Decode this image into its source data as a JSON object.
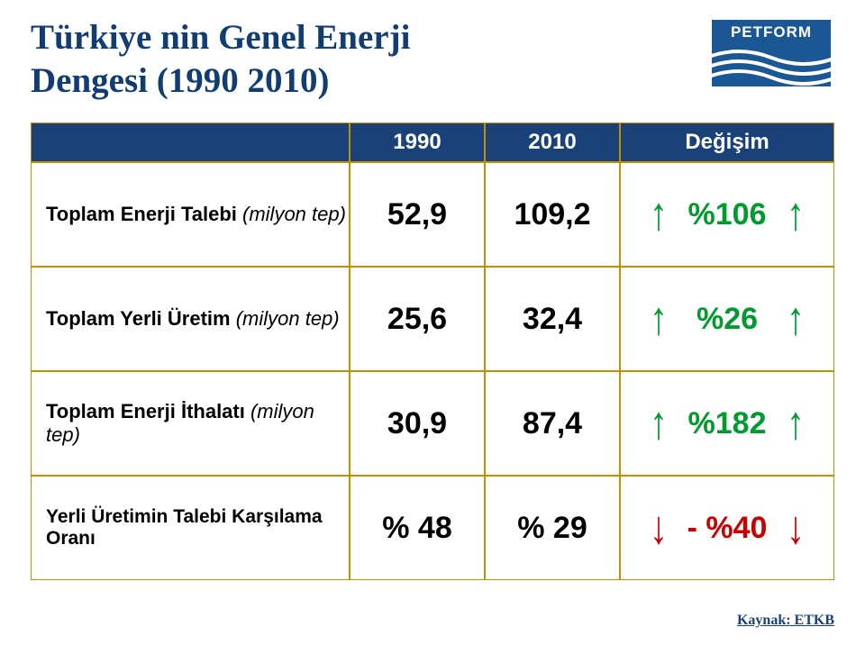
{
  "title": {
    "line1": "Türkiye nin Genel Enerji",
    "line2": "Dengesi (1990   2010)",
    "color": "#113d73",
    "fontsize": 39
  },
  "logo": {
    "text": "PETFORM",
    "top_bg": "#1a5794",
    "wave_bg": "#1a5794",
    "wave_color": "#ffffff"
  },
  "table": {
    "border_color": "#c68f00",
    "header": {
      "bg": "#1a4279",
      "fg": "#ffffff",
      "fontsize": 24,
      "cells": [
        "",
        "1990",
        "2010",
        "Değişim"
      ]
    },
    "rows": [
      {
        "label_main": "Toplam Enerji Talebi ",
        "label_sub": "(milyon tep)",
        "label_fontsize": 22,
        "v1": "52,9",
        "v2": "109,2",
        "val_fontsize": 34,
        "change": "%106",
        "change_fontsize": 34,
        "change_color": "#009a2e",
        "arrow": "↑"
      },
      {
        "label_main": "Toplam Yerli Üretim ",
        "label_sub": "(milyon tep)",
        "label_fontsize": 22,
        "v1": "25,6",
        "v2": "32,4",
        "val_fontsize": 34,
        "change": "%26",
        "change_fontsize": 34,
        "change_color": "#009a2e",
        "arrow": "↑"
      },
      {
        "label_main": "Toplam Enerji İthalatı ",
        "label_sub": "(milyon tep)",
        "label_fontsize": 22,
        "v1": "30,9",
        "v2": "87,4",
        "val_fontsize": 34,
        "change": "%182",
        "change_fontsize": 34,
        "change_color": "#009a2e",
        "arrow": "↑"
      },
      {
        "label_main": "Yerli Üretimin Talebi Karşılama Oranı",
        "label_sub": "",
        "label_fontsize": 21,
        "v1": "% 48",
        "v2": "% 29",
        "val_fontsize": 34,
        "change": "- %40",
        "change_fontsize": 34,
        "change_color": "#c80000",
        "arrow": "↓"
      }
    ]
  },
  "source": {
    "text": "Kaynak: ETKB",
    "color": "#1a4279",
    "fontsize": 16
  }
}
